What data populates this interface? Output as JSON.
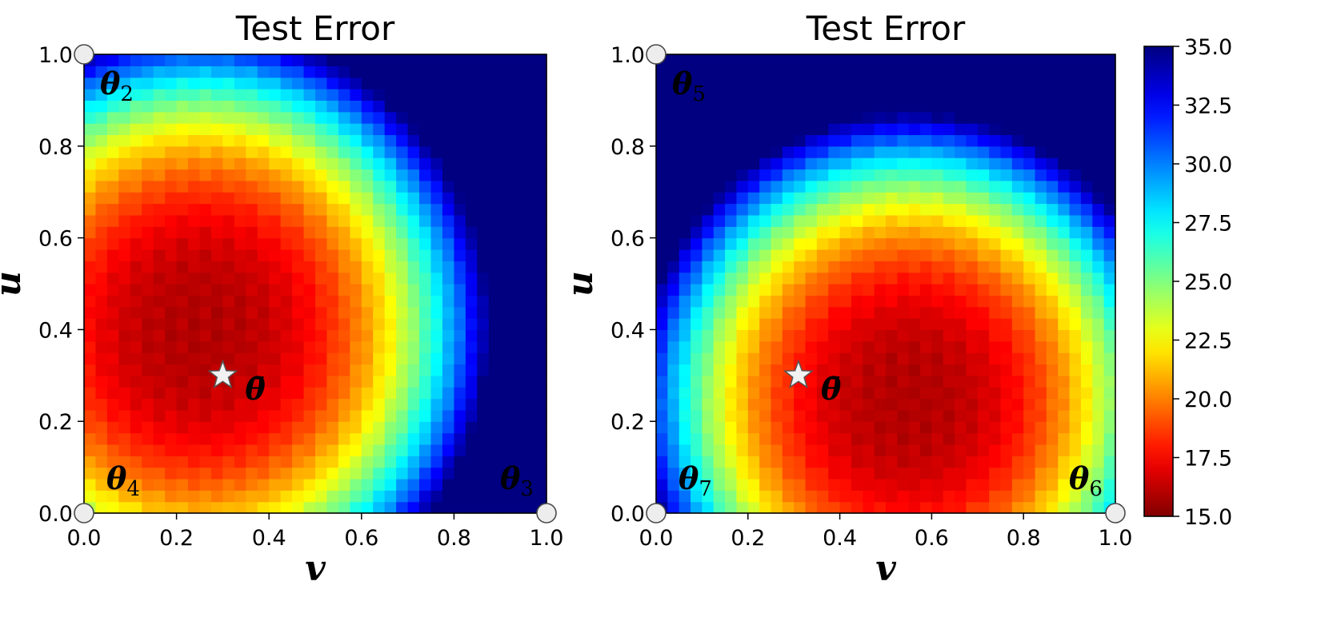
{
  "chart_data": [
    {
      "type": "heatmap",
      "title": "Test Error",
      "xlabel": "v",
      "ylabel": "u",
      "xlim": [
        0.0,
        1.0
      ],
      "ylim": [
        0.0,
        1.0
      ],
      "x_ticks": [
        "0.0",
        "0.2",
        "0.4",
        "0.6",
        "0.8",
        "1.0"
      ],
      "y_ticks": [
        "0.0",
        "0.2",
        "0.4",
        "0.6",
        "0.8",
        "1.0"
      ],
      "grid_resolution": 40,
      "field": {
        "min_value": 16.0,
        "min_at": [
          0.25,
          0.4
        ],
        "a": 2.2,
        "b": 2.0,
        "coeff": 42.0,
        "power": 1.35
      },
      "corner_points": [
        {
          "v": 0.0,
          "u": 1.0,
          "label": "θ",
          "sub": "2"
        },
        {
          "v": 1.0,
          "u": 0.0,
          "label": "θ",
          "sub": "3"
        },
        {
          "v": 0.0,
          "u": 0.0,
          "label": "θ",
          "sub": "4"
        }
      ],
      "center_point": {
        "v": 0.3,
        "u": 0.3,
        "label": "θ̄",
        "marker": "star"
      },
      "corner_markers": [
        [
          0.0,
          1.0
        ],
        [
          0.0,
          0.0
        ],
        [
          1.0,
          0.0
        ]
      ]
    },
    {
      "type": "heatmap",
      "title": "Test Error",
      "xlabel": "v",
      "ylabel": "u",
      "xlim": [
        0.0,
        1.0
      ],
      "ylim": [
        0.0,
        1.0
      ],
      "x_ticks": [
        "0.0",
        "0.2",
        "0.4",
        "0.6",
        "0.8",
        "1.0"
      ],
      "y_ticks": [
        "0.0",
        "0.2",
        "0.4",
        "0.6",
        "0.8",
        "1.0"
      ],
      "grid_resolution": 40,
      "field": {
        "min_value": 16.0,
        "min_at": [
          0.55,
          0.25
        ],
        "a": 2.2,
        "b": 2.0,
        "coeff": 48.0,
        "power": 1.5
      },
      "corner_points": [
        {
          "v": 0.0,
          "u": 1.0,
          "label": "θ",
          "sub": "5"
        },
        {
          "v": 1.0,
          "u": 0.0,
          "label": "θ",
          "sub": "6"
        },
        {
          "v": 0.0,
          "u": 0.0,
          "label": "θ",
          "sub": "7"
        }
      ],
      "center_point": {
        "v": 0.31,
        "u": 0.3,
        "label": "θ̄",
        "marker": "star"
      },
      "corner_markers": [
        [
          0.0,
          1.0
        ],
        [
          0.0,
          0.0
        ],
        [
          1.0,
          0.0
        ]
      ]
    }
  ],
  "colorbar": {
    "colormap": "jet_r",
    "min": 15.0,
    "max": 35.0,
    "ticks": [
      "15.0",
      "17.5",
      "20.0",
      "22.5",
      "25.0",
      "27.5",
      "30.0",
      "32.5",
      "35.0"
    ]
  },
  "colors": {
    "marker_fill": "#ededed",
    "marker_stroke": "#4a4a4a",
    "star_fill": "#f2f2f2",
    "star_stroke": "#555555"
  }
}
